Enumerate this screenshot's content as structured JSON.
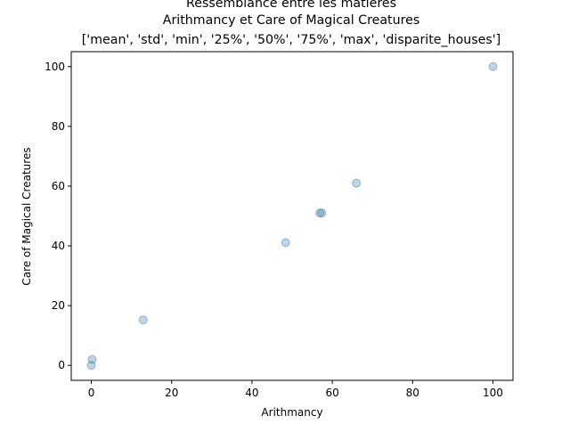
{
  "chart_data": {
    "type": "scatter",
    "title_lines": [
      "Ressemblance entre les matières",
      "Arithmancy et Care of Magical Creatures",
      "['mean', 'std', 'min', '25%', '50%', '75%', 'max', 'disparite_houses']"
    ],
    "xlabel": "Arithmancy",
    "ylabel": "Care of Magical Creatures",
    "xlim": [
      -5,
      105
    ],
    "ylim": [
      -5,
      105
    ],
    "xticks": [
      0,
      20,
      40,
      60,
      80,
      100
    ],
    "yticks": [
      0,
      20,
      40,
      60,
      80,
      100
    ],
    "xtick_labels": [
      "0",
      "20",
      "40",
      "60",
      "80",
      "100"
    ],
    "ytick_labels": [
      "0",
      "20",
      "40",
      "60",
      "80",
      "100"
    ],
    "grid": false,
    "marker_color": "#1f77b4",
    "points": [
      {
        "x": 0.0,
        "y": 0.0
      },
      {
        "x": 0.2,
        "y": 2.0
      },
      {
        "x": 12.9,
        "y": 15.2
      },
      {
        "x": 48.4,
        "y": 41.1
      },
      {
        "x": 56.9,
        "y": 51.0
      },
      {
        "x": 57.4,
        "y": 51.0
      },
      {
        "x": 66.0,
        "y": 61.0
      },
      {
        "x": 100.0,
        "y": 100.0
      }
    ]
  }
}
